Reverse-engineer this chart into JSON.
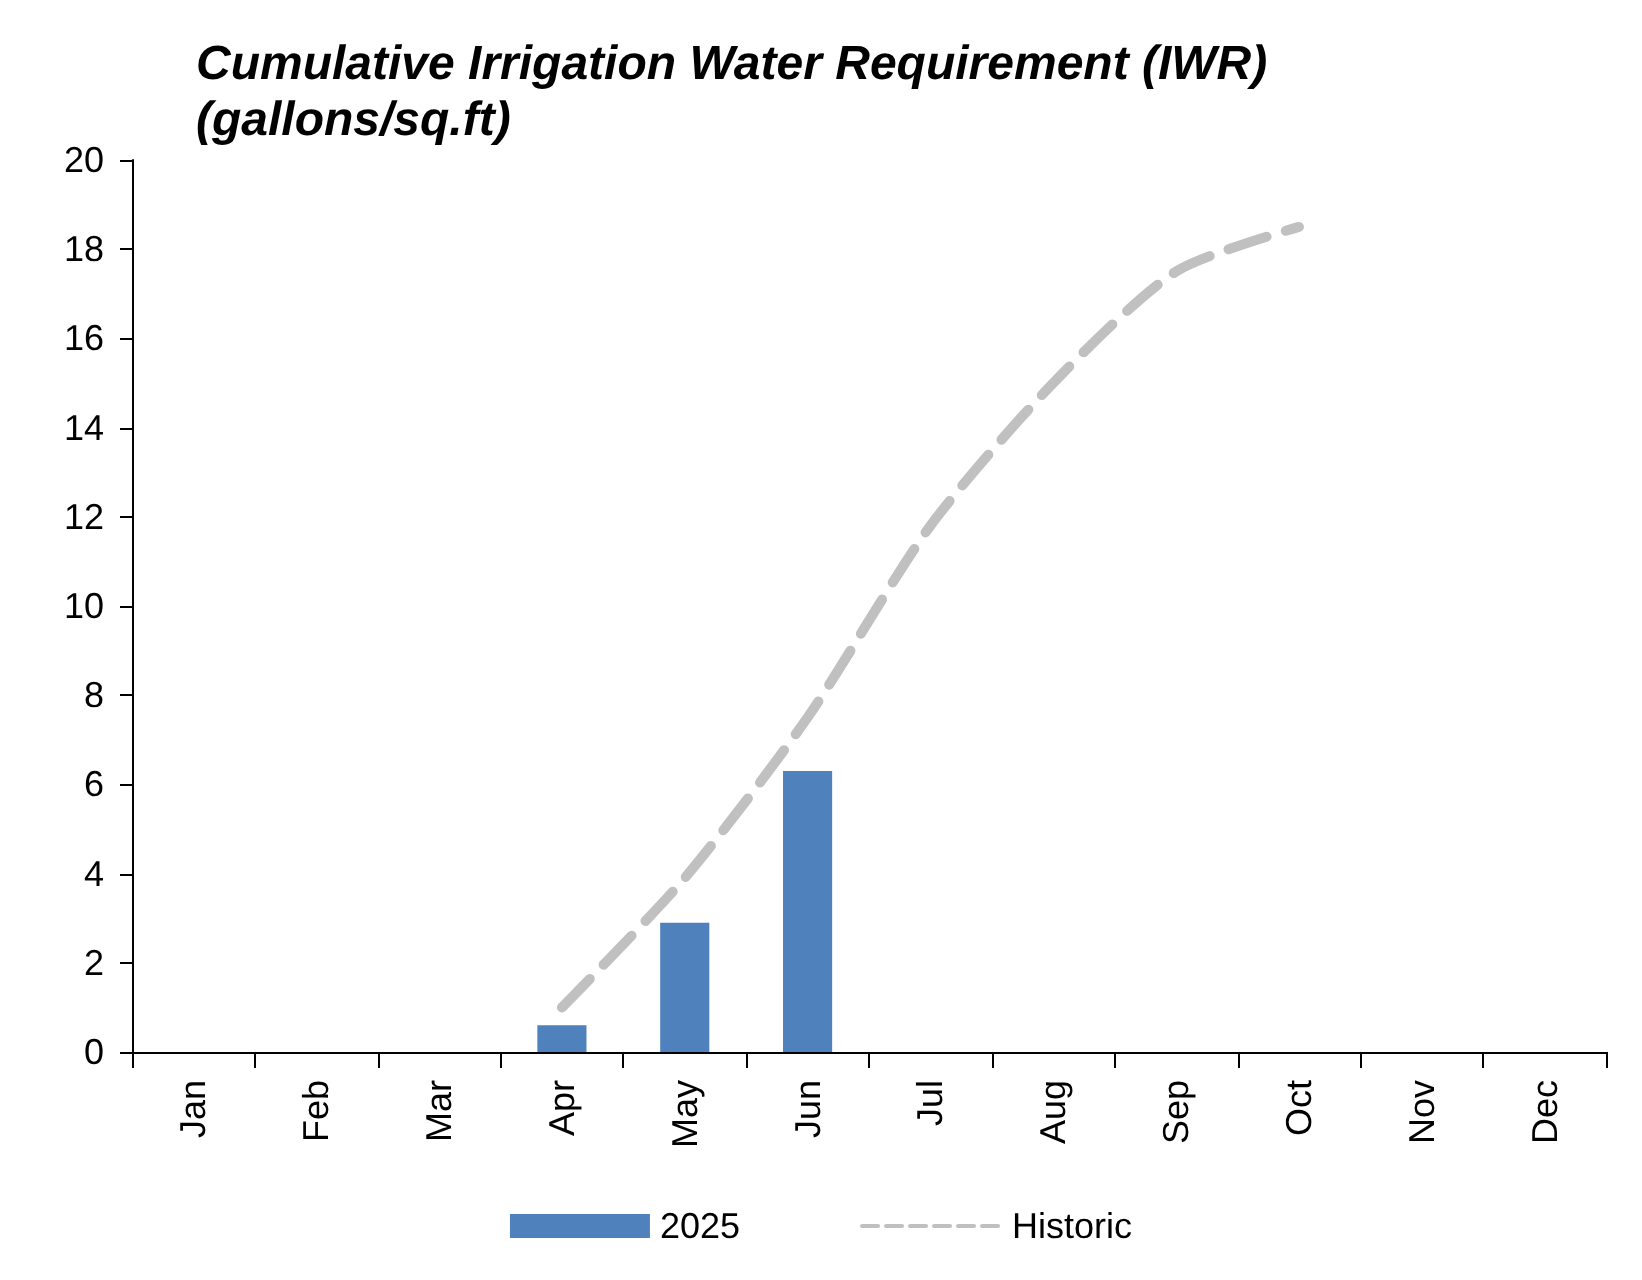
{
  "chart_data": {
    "type": "bar",
    "title": "Cumulative Irrigation Water Requirement (IWR)\n(gallons/sq.ft)",
    "categories": [
      "Jan",
      "Feb",
      "Mar",
      "Apr",
      "May",
      "Jun",
      "Jul",
      "Aug",
      "Sep",
      "Oct",
      "Nov",
      "Dec"
    ],
    "series": [
      {
        "name": "2025",
        "color": "#4f81bd",
        "values": [
          null,
          null,
          null,
          0.6,
          2.9,
          6.3,
          null,
          null,
          null,
          null,
          null,
          null
        ]
      },
      {
        "name": "Historic",
        "type": "line",
        "color": "#c0c0c0",
        "line_style": "dashed",
        "marker": "none",
        "values": [
          null,
          null,
          null,
          1.0,
          3.9,
          7.5,
          11.8,
          15.0,
          17.5,
          18.5,
          null,
          null
        ]
      }
    ],
    "ylim": [
      0,
      20
    ],
    "yticks": [
      0,
      2,
      4,
      6,
      8,
      10,
      12,
      14,
      16,
      18,
      20
    ],
    "grid": false,
    "legend": "bottom"
  }
}
